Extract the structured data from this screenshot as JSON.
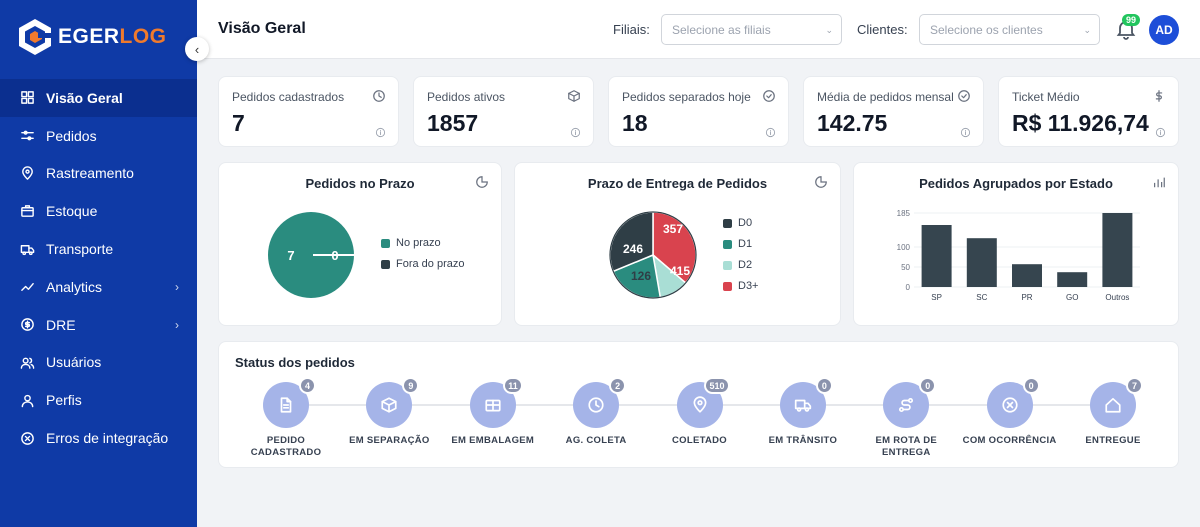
{
  "brand": {
    "part1": "EGER",
    "part2": "LOG",
    "accent": "#f07a2c",
    "sidebar_bg": "#0f3aa6"
  },
  "sidebar": {
    "items": [
      {
        "label": "Visão Geral",
        "icon": "grid-icon",
        "active": true
      },
      {
        "label": "Pedidos",
        "icon": "sliders-icon"
      },
      {
        "label": "Rastreamento",
        "icon": "map-pin-icon"
      },
      {
        "label": "Estoque",
        "icon": "box-icon"
      },
      {
        "label": "Transporte",
        "icon": "truck-icon"
      },
      {
        "label": "Analytics",
        "icon": "trend-icon",
        "expandable": true
      },
      {
        "label": "DRE",
        "icon": "dollar-circle-icon",
        "expandable": true
      },
      {
        "label": "Usuários",
        "icon": "users-icon"
      },
      {
        "label": "Perfis",
        "icon": "user-icon"
      },
      {
        "label": "Erros de integração",
        "icon": "x-circle-icon"
      }
    ]
  },
  "header": {
    "title": "Visão Geral",
    "filiais_label": "Filiais:",
    "filiais_placeholder": "Selecione as filiais",
    "clientes_label": "Clientes:",
    "clientes_placeholder": "Selecione os clientes",
    "notifications": "99",
    "avatar": "AD"
  },
  "stats": [
    {
      "label": "Pedidos cadastrados",
      "value": "7",
      "icon": "clock-icon"
    },
    {
      "label": "Pedidos ativos",
      "value": "1857",
      "icon": "package-icon"
    },
    {
      "label": "Pedidos separados hoje",
      "value": "18",
      "icon": "check-circle-icon"
    },
    {
      "label": "Média de pedidos mensal",
      "value": "142.75",
      "icon": "check-circle-icon"
    },
    {
      "label": "Ticket Médio",
      "value": "R$ 11.926,74",
      "icon": "dollar-icon"
    }
  ],
  "panels": {
    "prazo": {
      "title": "Pedidos no Prazo"
    },
    "entrega": {
      "title": "Prazo de Entrega de Pedidos"
    },
    "estado": {
      "title": "Pedidos Agrupados por Estado"
    }
  },
  "chart_data": [
    {
      "type": "pie",
      "title": "Pedidos no Prazo",
      "categories": [
        "No prazo",
        "Fora do prazo"
      ],
      "values": [
        7,
        0
      ],
      "colors": [
        "#2a8c7f",
        "#2f3e46"
      ]
    },
    {
      "type": "pie",
      "title": "Prazo de Entrega de Pedidos",
      "categories": [
        "D0",
        "D1",
        "D2",
        "D3+"
      ],
      "values": [
        357,
        246,
        126,
        415
      ],
      "colors": [
        "#2f3e46",
        "#2a8c7f",
        "#a9ded5",
        "#d9434e"
      ]
    },
    {
      "type": "bar",
      "title": "Pedidos Agrupados por Estado",
      "categories": [
        "SP",
        "SC",
        "PR",
        "GO",
        "Outros"
      ],
      "values": [
        155,
        122,
        57,
        37,
        185
      ],
      "ylim": [
        0,
        185
      ],
      "yticks": [
        0,
        50,
        100,
        185
      ],
      "color": "#36454f"
    }
  ],
  "status": {
    "title": "Status dos pedidos",
    "steps": [
      {
        "label": "PEDIDO CADASTRADO",
        "count": "4",
        "icon": "document-icon"
      },
      {
        "label": "EM SEPARAÇÃO",
        "count": "9",
        "icon": "cube-icon"
      },
      {
        "label": "EM EMBALAGEM",
        "count": "11",
        "icon": "package-open-icon"
      },
      {
        "label": "AG. COLETA",
        "count": "2",
        "icon": "clock-icon"
      },
      {
        "label": "COLETADO",
        "count": "510",
        "icon": "map-pin-icon"
      },
      {
        "label": "EM TRÂNSITO",
        "count": "0",
        "icon": "truck-icon"
      },
      {
        "label": "EM ROTA DE ENTREGA",
        "count": "0",
        "icon": "route-icon"
      },
      {
        "label": "COM OCORRÊNCIA",
        "count": "0",
        "icon": "x-circle-icon"
      },
      {
        "label": "ENTREGUE",
        "count": "7",
        "icon": "home-icon"
      }
    ]
  }
}
